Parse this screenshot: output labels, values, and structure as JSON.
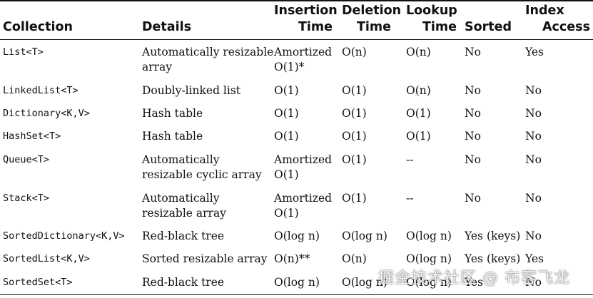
{
  "headers": {
    "collection": "Collection",
    "details": "Details",
    "insertion": [
      "Insertion",
      "Time"
    ],
    "deletion": [
      "Deletion",
      "Time"
    ],
    "lookup": [
      "Lookup",
      "Time"
    ],
    "sorted": "Sorted",
    "index": [
      "Index",
      "Access"
    ]
  },
  "rows": [
    {
      "collection": "List<T>",
      "details": [
        "Automatically resizable",
        "array"
      ],
      "insertion": [
        "Amortized",
        "O(1)*"
      ],
      "deletion": "O(n)",
      "lookup": "O(n)",
      "sorted": "No",
      "index": "Yes"
    },
    {
      "collection": "LinkedList<T>",
      "details": [
        "Doubly-linked list"
      ],
      "insertion": [
        "O(1)"
      ],
      "deletion": "O(1)",
      "lookup": "O(n)",
      "sorted": "No",
      "index": "No"
    },
    {
      "collection": "Dictionary<K,V>",
      "details": [
        "Hash table"
      ],
      "insertion": [
        "O(1)"
      ],
      "deletion": "O(1)",
      "lookup": "O(1)",
      "sorted": "No",
      "index": "No"
    },
    {
      "collection": "HashSet<T>",
      "details": [
        "Hash table"
      ],
      "insertion": [
        "O(1)"
      ],
      "deletion": "O(1)",
      "lookup": "O(1)",
      "sorted": "No",
      "index": "No"
    },
    {
      "collection": "Queue<T>",
      "details": [
        "Automatically",
        "resizable cyclic array"
      ],
      "insertion": [
        "Amortized",
        "O(1)"
      ],
      "deletion": "O(1)",
      "lookup": "--",
      "sorted": "No",
      "index": "No"
    },
    {
      "collection": "Stack<T>",
      "details": [
        "Automatically",
        "resizable array"
      ],
      "insertion": [
        "Amortized",
        "O(1)"
      ],
      "deletion": "O(1)",
      "lookup": "--",
      "sorted": "No",
      "index": "No"
    },
    {
      "collection": "SortedDictionary<K,V>",
      "details": [
        "Red-black tree"
      ],
      "insertion": [
        "O(log n)"
      ],
      "deletion": "O(log n)",
      "lookup": "O(log n)",
      "sorted": "Yes (keys)",
      "index": "No"
    },
    {
      "collection": "SortedList<K,V>",
      "details": [
        "Sorted resizable array"
      ],
      "insertion": [
        "O(n)**"
      ],
      "deletion": "O(n)",
      "lookup": "O(log n)",
      "sorted": "Yes (keys)",
      "index": "Yes"
    },
    {
      "collection": "SortedSet<T>",
      "details": [
        "Red-black tree"
      ],
      "insertion": [
        "O(log n)"
      ],
      "deletion": "O(log n)",
      "lookup": "O(log n)",
      "sorted": "Yes",
      "index": "No"
    }
  ],
  "watermark": "掘金技术社区 @ 布客飞龙"
}
